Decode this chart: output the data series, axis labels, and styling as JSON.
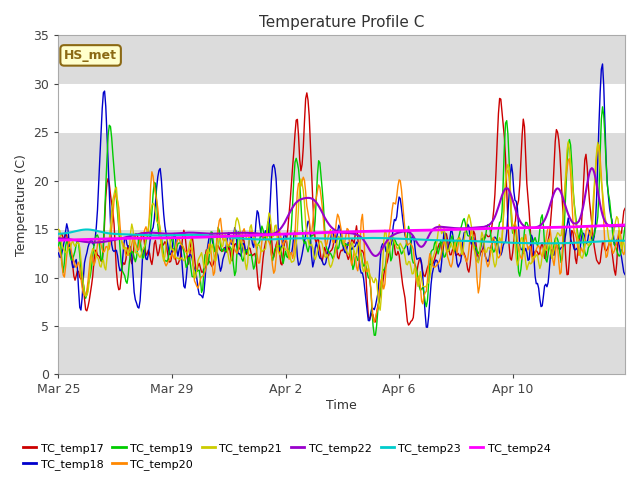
{
  "title": "Temperature Profile C",
  "xlabel": "Time",
  "ylabel": "Temperature (C)",
  "ylim": [
    0,
    35
  ],
  "yticks": [
    0,
    5,
    10,
    15,
    20,
    25,
    30,
    35
  ],
  "x_tick_labels": [
    "Mar 25",
    "Mar 29",
    "Apr 2",
    "Apr 6",
    "Apr 10"
  ],
  "x_tick_positions": [
    0,
    96,
    192,
    288,
    384
  ],
  "background_color": "#dcdcdc",
  "figure_color": "#ffffff",
  "band_color_light": "#ffffff",
  "band_color_dark": "#dcdcdc",
  "annotation_text": "HS_met",
  "annotation_bg": "#ffffcc",
  "annotation_border": "#8b6914",
  "series_names": [
    "TC_temp17",
    "TC_temp18",
    "TC_temp19",
    "TC_temp20",
    "TC_temp21",
    "TC_temp22",
    "TC_temp23",
    "TC_temp24"
  ],
  "series_colors": [
    "#cc0000",
    "#0000cc",
    "#00cc00",
    "#ff8800",
    "#cccc00",
    "#9900cc",
    "#00cccc",
    "#ff00ff"
  ],
  "n_points": 480,
  "seed": 42
}
